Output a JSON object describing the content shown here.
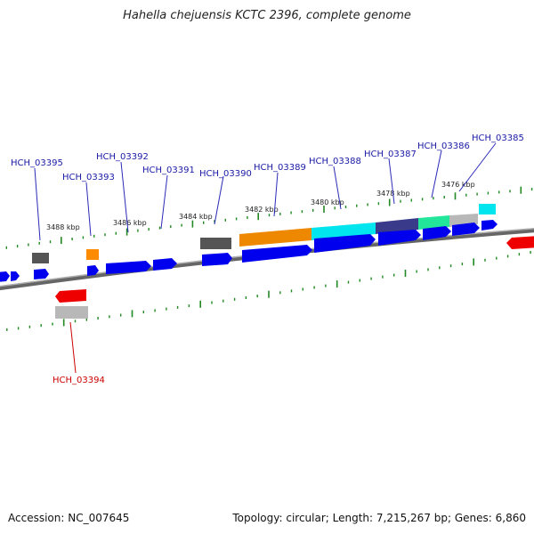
{
  "title": "Hahella chejuensis KCTC 2396, complete genome",
  "footer": {
    "accession": "Accession: NC_007645",
    "stats": "Topology: circular; Length: 7,215,267 bp; Genes: 6,860"
  },
  "colors": {
    "forward_gene": "#0000ee",
    "reverse_gene": "#ee0000",
    "backbone": "#888888",
    "tick": "#228822",
    "label_forward": "#1a1aa6",
    "label_reverse": "#cc0000"
  },
  "scale_labels": [
    "3488 kbp",
    "3486 kbp",
    "3484 kbp",
    "3482 kbp",
    "3480 kbp",
    "3478 kbp",
    "3476 kbp"
  ],
  "gene_labels": [
    {
      "name": "HCH_03395",
      "strand": "forward"
    },
    {
      "name": "HCH_03393",
      "strand": "forward"
    },
    {
      "name": "HCH_03392",
      "strand": "forward"
    },
    {
      "name": "HCH_03391",
      "strand": "forward"
    },
    {
      "name": "HCH_03390",
      "strand": "forward"
    },
    {
      "name": "HCH_03389",
      "strand": "forward"
    },
    {
      "name": "HCH_03388",
      "strand": "forward"
    },
    {
      "name": "HCH_03387",
      "strand": "forward"
    },
    {
      "name": "HCH_03386",
      "strand": "forward"
    },
    {
      "name": "HCH_03385",
      "strand": "forward"
    },
    {
      "name": "HCH_03394",
      "strand": "reverse"
    }
  ]
}
